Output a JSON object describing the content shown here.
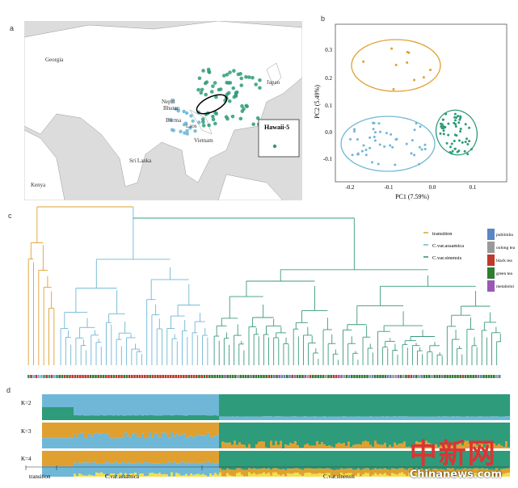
{
  "panels": {
    "a": "a",
    "b": "b",
    "c": "c",
    "d": "d"
  },
  "map": {
    "labels": [
      "Georgia",
      "Nepal",
      "Bhutan",
      "Burma",
      "Laos",
      "Vietnam",
      "Sri Lanka",
      "Kenya",
      "Japan",
      "Hawaii-5"
    ],
    "box_label": "Hawaii-5"
  },
  "pca": {
    "xlabel": "PC1 (7.59%)",
    "ylabel": "PC2 (5.49%)",
    "xticks": [
      "-0.2",
      "-0.1",
      "0.0",
      "0.1"
    ],
    "yticks": [
      "0.3",
      "0.2",
      "0.1",
      "0.0",
      "-0.1"
    ]
  },
  "legend": {
    "groups": [
      {
        "label": "transition",
        "color": "#e0a030"
      },
      {
        "label": "C.var.assamica",
        "color": "#6fb7d6"
      },
      {
        "label": "C.var.sinensis",
        "color": "#2e8b6e"
      }
    ],
    "tea_types": [
      {
        "label": "pubiimba",
        "color": "#5b86c5"
      },
      {
        "label": "oolong tea",
        "color": "#999999"
      },
      {
        "label": "black tea",
        "color": "#c0392b"
      },
      {
        "label": "green tea",
        "color": "#2e7d32"
      },
      {
        "label": "metaboloi",
        "color": "#9b59b6"
      }
    ]
  },
  "structure": {
    "rows": [
      "K=2",
      "K=3",
      "K=4"
    ],
    "groups": [
      "transition",
      "C.var.assamica",
      "C.var.sinensis"
    ]
  },
  "watermark": {
    "main": "中新网",
    "url": "Chinanews.com"
  },
  "colors": {
    "transition": "#e0a030",
    "assamica": "#6fb7d6",
    "sinensis": "#2e9b7a",
    "yellow": "#f2e04a"
  }
}
